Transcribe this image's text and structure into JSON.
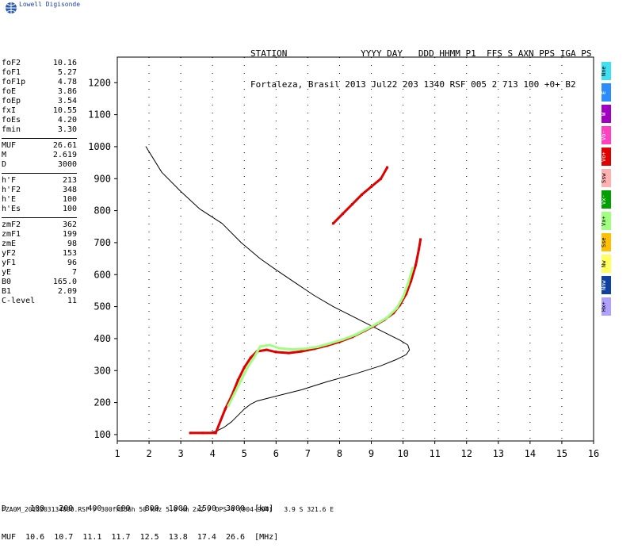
{
  "brand": {
    "name": "Lowell Digisonde"
  },
  "header": {
    "line1": "STATION              YYYY DAY   DDD HHMM P1  FFS S AXN PPS IGA PS",
    "line2": "Fortaleza, Brasil 2013 Jul22 203 1340 RSF 005 2 713 100 +0+ B2"
  },
  "params": {
    "group1": [
      {
        "k": "foF2",
        "v": "10.16"
      },
      {
        "k": "foF1",
        "v": "5.27"
      },
      {
        "k": "foF1p",
        "v": "4.78"
      },
      {
        "k": "foE",
        "v": "3.86"
      },
      {
        "k": "foEp",
        "v": "3.54"
      },
      {
        "k": "fxI",
        "v": "10.55"
      },
      {
        "k": "foEs",
        "v": "4.20"
      },
      {
        "k": "fmin",
        "v": "3.30"
      }
    ],
    "group2": [
      {
        "k": "MUF",
        "v": "26.61"
      },
      {
        "k": "M",
        "v": "2.619"
      },
      {
        "k": "D",
        "v": "3000"
      }
    ],
    "group3": [
      {
        "k": "h'F",
        "v": "213"
      },
      {
        "k": "h'F2",
        "v": "348"
      },
      {
        "k": "h'E",
        "v": "100"
      },
      {
        "k": "h'Es",
        "v": "100"
      }
    ],
    "group4": [
      {
        "k": "zmF2",
        "v": "362"
      },
      {
        "k": "zmF1",
        "v": "199"
      },
      {
        "k": "zmE",
        "v": "98"
      },
      {
        "k": "yF2",
        "v": "153"
      },
      {
        "k": "yF1",
        "v": "96"
      },
      {
        "k": "yE",
        "v": "7"
      },
      {
        "k": "B0",
        "v": "165.0"
      },
      {
        "k": "B1",
        "v": "2.09"
      },
      {
        "k": "C-level",
        "v": "11"
      }
    ]
  },
  "muf_table": {
    "row1": "D     100   200   400   600   800  1000  1500  3000  [km]",
    "row2": "MUF  10.6  10.7  11.1  11.7  12.5  13.8  17.4  26.6  [MHz]"
  },
  "footer": {
    "text": "FZA0M_2013203134000.RSF / 300fx256h 50 kHz 5.0 km 2x2 / DPS-4 (904-904)   3.9 S 321.6 E"
  },
  "legend": [
    {
      "label": "Nne",
      "color": "#40e0f0"
    },
    {
      "label": "E",
      "color": "#2b8cff"
    },
    {
      "label": "W",
      "color": "#a000c0"
    },
    {
      "label": "Vo-",
      "color": "#ff40c0"
    },
    {
      "label": "Vo+",
      "color": "#e00000"
    },
    {
      "label": "Ssw",
      "color": "#ffb0b0"
    },
    {
      "label": "Vx-",
      "color": "#00a000"
    },
    {
      "label": "Vx+",
      "color": "#a0ff80"
    },
    {
      "label": "Sse",
      "color": "#ffc000"
    },
    {
      "label": "Nw",
      "color": "#ffff60"
    },
    {
      "label": "Nnw",
      "color": "#1040a0"
    },
    {
      "label": "Hx+",
      "color": "#b0a0ff"
    }
  ],
  "chart_data": {
    "type": "scatter",
    "xlim": [
      1,
      16
    ],
    "ylim": [
      80,
      1280
    ],
    "x_ticks": [
      1,
      2,
      3,
      4,
      5,
      6,
      7,
      8,
      9,
      10,
      11,
      12,
      13,
      14,
      15,
      16
    ],
    "y_ticks": [
      100,
      200,
      300,
      400,
      500,
      600,
      700,
      800,
      900,
      1000,
      1100,
      1200
    ],
    "grid": "dotted vertical",
    "series": [
      {
        "color": "#000000",
        "style": "line",
        "points": [
          [
            1.9,
            1000
          ],
          [
            2.4,
            920
          ],
          [
            3.0,
            860
          ],
          [
            3.6,
            805
          ],
          [
            4.3,
            760
          ],
          [
            4.9,
            700
          ],
          [
            5.5,
            650
          ],
          [
            6.0,
            615
          ],
          [
            6.6,
            575
          ],
          [
            7.2,
            535
          ],
          [
            7.8,
            500
          ],
          [
            8.4,
            470
          ],
          [
            8.9,
            445
          ],
          [
            9.3,
            425
          ],
          [
            9.6,
            410
          ],
          [
            9.9,
            395
          ],
          [
            10.15,
            380
          ],
          [
            10.2,
            365
          ],
          [
            10.1,
            350
          ],
          [
            9.8,
            335
          ],
          [
            9.3,
            315
          ],
          [
            8.5,
            290
          ],
          [
            7.6,
            265
          ],
          [
            6.8,
            240
          ],
          [
            6.0,
            220
          ],
          [
            5.4,
            205
          ],
          [
            5.2,
            195
          ],
          [
            5.0,
            180
          ],
          [
            4.8,
            160
          ],
          [
            4.6,
            140
          ],
          [
            4.35,
            122
          ],
          [
            4.1,
            110
          ],
          [
            3.8,
            105
          ],
          [
            3.3,
            105
          ]
        ]
      },
      {
        "color": "#e00000",
        "style": "trace",
        "points": [
          [
            3.3,
            105
          ],
          [
            3.7,
            105
          ],
          [
            4.1,
            105
          ],
          [
            4.4,
            180
          ],
          [
            4.6,
            220
          ],
          [
            4.8,
            270
          ],
          [
            5.0,
            310
          ],
          [
            5.2,
            340
          ],
          [
            5.4,
            360
          ],
          [
            5.7,
            365
          ],
          [
            6.0,
            358
          ],
          [
            6.4,
            355
          ],
          [
            6.8,
            360
          ],
          [
            7.2,
            368
          ],
          [
            7.6,
            378
          ],
          [
            8.0,
            390
          ],
          [
            8.4,
            405
          ],
          [
            8.8,
            425
          ],
          [
            9.1,
            440
          ],
          [
            9.4,
            458
          ],
          [
            9.7,
            480
          ],
          [
            9.9,
            505
          ],
          [
            10.1,
            540
          ],
          [
            10.25,
            580
          ],
          [
            10.4,
            630
          ],
          [
            10.5,
            680
          ],
          [
            10.55,
            710
          ]
        ]
      },
      {
        "color": "#a0ff80",
        "style": "trace",
        "points": [
          [
            4.5,
            190
          ],
          [
            4.7,
            230
          ],
          [
            4.9,
            270
          ],
          [
            5.1,
            310
          ],
          [
            5.3,
            340
          ],
          [
            5.5,
            375
          ],
          [
            5.8,
            380
          ],
          [
            6.1,
            370
          ],
          [
            6.5,
            366
          ],
          [
            6.9,
            368
          ],
          [
            7.3,
            374
          ],
          [
            7.7,
            385
          ],
          [
            8.1,
            397
          ],
          [
            8.5,
            412
          ],
          [
            8.9,
            432
          ],
          [
            9.2,
            448
          ],
          [
            9.5,
            466
          ],
          [
            9.8,
            495
          ],
          [
            10.0,
            530
          ],
          [
            10.15,
            570
          ],
          [
            10.3,
            620
          ]
        ]
      },
      {
        "color": "#e00000",
        "style": "trace",
        "points": [
          [
            7.8,
            760
          ],
          [
            8.1,
            790
          ],
          [
            8.4,
            820
          ],
          [
            8.7,
            850
          ],
          [
            9.0,
            875
          ],
          [
            9.3,
            900
          ],
          [
            9.5,
            935
          ]
        ]
      }
    ]
  }
}
